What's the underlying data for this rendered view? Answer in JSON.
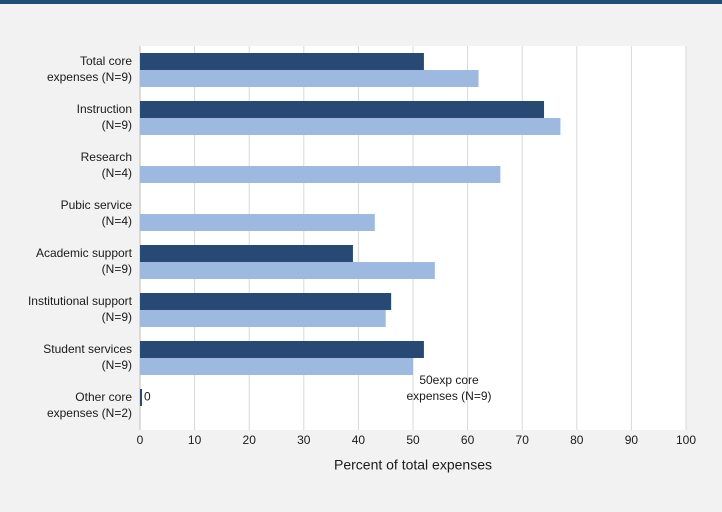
{
  "chart_data": {
    "type": "hbar",
    "categories": [
      [
        "Total core",
        "expenses (N=9)"
      ],
      [
        "Instruction",
        "(N=9)"
      ],
      [
        "Research",
        "(N=4)"
      ],
      [
        "Pubic service",
        "(N=4)"
      ],
      [
        "Academic support",
        "(N=9)"
      ],
      [
        "Institutional support",
        "(N=9)"
      ],
      [
        "Student services",
        "(N=9)"
      ],
      [
        "Other core",
        "expenses (N=2)"
      ]
    ],
    "series": [
      {
        "color": "#264a73",
        "values": [
          52,
          74,
          null,
          null,
          39,
          46,
          52,
          0
        ]
      },
      {
        "color": "#9db9e0",
        "values": [
          62,
          77,
          66,
          43,
          54,
          45,
          50,
          null
        ]
      }
    ],
    "xlim": [
      0,
      100
    ],
    "xticks": [
      0,
      10,
      20,
      30,
      40,
      50,
      60,
      70,
      80,
      90,
      100
    ],
    "xlabel": "Percent of total expenses",
    "grid": true,
    "annotation": [
      "50exp core",
      "expenses (N=9)"
    ]
  }
}
